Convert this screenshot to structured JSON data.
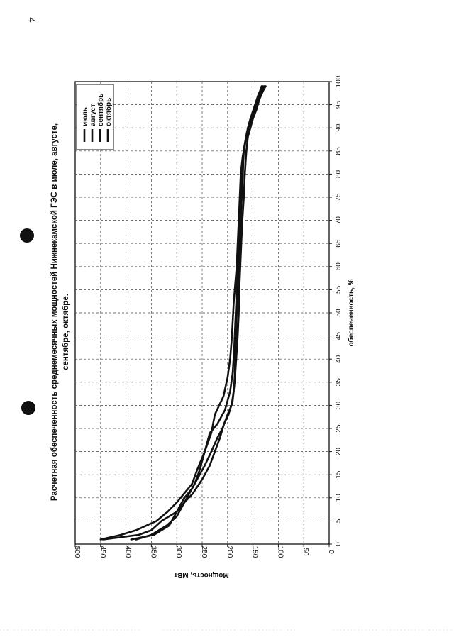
{
  "page": {
    "number": "4"
  },
  "chart_data": {
    "type": "line",
    "title_lines": [
      "Расчетная обеспеченность среднемесячных мощностей Нижнекамской ГЭС в июле, августе,",
      "сентябре, октябре."
    ],
    "xlabel": "обеспеченность, %",
    "ylabel": "Мощность, МВт",
    "xlim": [
      0,
      100
    ],
    "ylim": [
      0,
      500
    ],
    "x_ticks": [
      0,
      5,
      10,
      15,
      20,
      25,
      30,
      35,
      40,
      45,
      50,
      55,
      60,
      65,
      70,
      75,
      80,
      85,
      90,
      95,
      100
    ],
    "y_ticks": [
      0,
      50,
      100,
      150,
      200,
      250,
      300,
      350,
      400,
      450,
      500
    ],
    "grid": true,
    "orientation": "rotated-90",
    "legend_position": "top-right",
    "series": [
      {
        "name": "июль",
        "color": "#111111",
        "points": [
          [
            1,
            445
          ],
          [
            2,
            375
          ],
          [
            3,
            350
          ],
          [
            5,
            330
          ],
          [
            7,
            300
          ],
          [
            9,
            285
          ],
          [
            11,
            268
          ],
          [
            14,
            250
          ],
          [
            17,
            235
          ],
          [
            20,
            225
          ],
          [
            23,
            215
          ],
          [
            26,
            207
          ],
          [
            28,
            198
          ],
          [
            31,
            190
          ],
          [
            35,
            186
          ],
          [
            40,
            183
          ],
          [
            45,
            180
          ],
          [
            50,
            178
          ],
          [
            55,
            177
          ],
          [
            60,
            175
          ],
          [
            65,
            173
          ],
          [
            70,
            171
          ],
          [
            75,
            168
          ],
          [
            80,
            166
          ],
          [
            85,
            163
          ],
          [
            88,
            160
          ],
          [
            90,
            155
          ],
          [
            92,
            150
          ],
          [
            94,
            143
          ],
          [
            96,
            138
          ],
          [
            98,
            130
          ],
          [
            99,
            125
          ]
        ]
      },
      {
        "name": "август",
        "color": "#111111",
        "points": [
          [
            1,
            390
          ],
          [
            2,
            345
          ],
          [
            3,
            330
          ],
          [
            4,
            315
          ],
          [
            6,
            305
          ],
          [
            8,
            295
          ],
          [
            10,
            285
          ],
          [
            12,
            270
          ],
          [
            14,
            260
          ],
          [
            17,
            245
          ],
          [
            20,
            232
          ],
          [
            23,
            220
          ],
          [
            25,
            210
          ],
          [
            28,
            200
          ],
          [
            30,
            192
          ],
          [
            33,
            188
          ],
          [
            36,
            186
          ],
          [
            40,
            185
          ],
          [
            45,
            183
          ],
          [
            50,
            182
          ],
          [
            55,
            180
          ],
          [
            60,
            178
          ],
          [
            65,
            176
          ],
          [
            70,
            174
          ],
          [
            75,
            172
          ],
          [
            80,
            170
          ],
          [
            85,
            168
          ],
          [
            88,
            163
          ],
          [
            90,
            158
          ],
          [
            92,
            152
          ],
          [
            94,
            146
          ],
          [
            96,
            140
          ],
          [
            98,
            135
          ],
          [
            99,
            130
          ]
        ]
      },
      {
        "name": "сентябрь",
        "color": "#111111",
        "points": [
          [
            1,
            450
          ],
          [
            2,
            410
          ],
          [
            3,
            380
          ],
          [
            4,
            360
          ],
          [
            5,
            340
          ],
          [
            7,
            318
          ],
          [
            9,
            300
          ],
          [
            11,
            285
          ],
          [
            13,
            270
          ],
          [
            16,
            260
          ],
          [
            20,
            245
          ],
          [
            24,
            232
          ],
          [
            28,
            225
          ],
          [
            32,
            208
          ],
          [
            36,
            200
          ],
          [
            40,
            195
          ],
          [
            44,
            192
          ],
          [
            48,
            190
          ],
          [
            52,
            188
          ],
          [
            56,
            185
          ],
          [
            60,
            182
          ],
          [
            65,
            180
          ],
          [
            70,
            178
          ],
          [
            75,
            176
          ],
          [
            80,
            174
          ],
          [
            84,
            170
          ],
          [
            87,
            165
          ],
          [
            90,
            160
          ],
          [
            92,
            155
          ],
          [
            94,
            148
          ],
          [
            96,
            142
          ],
          [
            98,
            132
          ],
          [
            99,
            128
          ]
        ]
      },
      {
        "name": "октябрь",
        "color": "#111111",
        "points": [
          [
            1,
            380
          ],
          [
            2,
            350
          ],
          [
            3,
            335
          ],
          [
            4,
            320
          ],
          [
            6,
            300
          ],
          [
            8,
            290
          ],
          [
            10,
            280
          ],
          [
            13,
            265
          ],
          [
            16,
            255
          ],
          [
            20,
            245
          ],
          [
            22,
            240
          ],
          [
            24,
            235
          ],
          [
            26,
            220
          ],
          [
            29,
            205
          ],
          [
            33,
            195
          ],
          [
            37,
            190
          ],
          [
            42,
            187
          ],
          [
            47,
            185
          ],
          [
            52,
            183
          ],
          [
            57,
            181
          ],
          [
            62,
            179
          ],
          [
            67,
            177
          ],
          [
            72,
            175
          ],
          [
            77,
            173
          ],
          [
            82,
            171
          ],
          [
            86,
            167
          ],
          [
            89,
            162
          ],
          [
            91,
            157
          ],
          [
            93,
            152
          ],
          [
            95,
            146
          ],
          [
            97,
            140
          ],
          [
            98,
            136
          ],
          [
            99,
            133
          ]
        ]
      }
    ]
  }
}
